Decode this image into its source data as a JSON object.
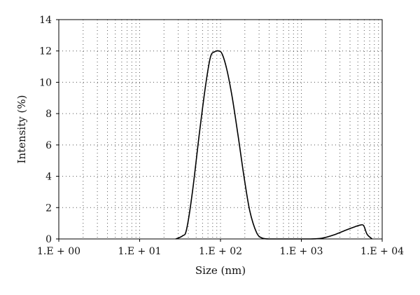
{
  "chart_data": {
    "type": "line",
    "xlabel": "Size (nm)",
    "ylabel": "Intensity (%)",
    "x_scale": "log",
    "xlim": [
      1,
      10000
    ],
    "ylim": [
      0,
      14
    ],
    "x_ticks": [
      {
        "value": 1,
        "label": "1.E + 00"
      },
      {
        "value": 10,
        "label": "1.E + 01"
      },
      {
        "value": 100,
        "label": "1.E + 02"
      },
      {
        "value": 1000,
        "label": "1.E + 03"
      },
      {
        "value": 10000,
        "label": "1.E + 04"
      }
    ],
    "y_ticks": [
      {
        "value": 0,
        "label": "0"
      },
      {
        "value": 2,
        "label": "2"
      },
      {
        "value": 4,
        "label": "4"
      },
      {
        "value": 6,
        "label": "6"
      },
      {
        "value": 8,
        "label": "8"
      },
      {
        "value": 10,
        "label": "10"
      },
      {
        "value": 12,
        "label": "12"
      },
      {
        "value": 14,
        "label": "14"
      }
    ],
    "grid": true,
    "legend": "none",
    "series": [
      {
        "x": [
          28,
          34,
          38,
          45,
          55,
          65,
          75,
          85,
          95,
          105,
          120,
          140,
          165,
          195,
          230,
          280,
          330,
          400,
          600,
          900,
          1300,
          1800,
          2500,
          3500,
          4600,
          5300,
          5900,
          6500,
          7500
        ],
        "y": [
          0,
          0.2,
          0.6,
          3.0,
          6.8,
          9.7,
          11.6,
          11.95,
          12.0,
          11.8,
          10.8,
          9.0,
          6.6,
          4.0,
          1.8,
          0.4,
          0.05,
          0,
          0,
          0,
          0,
          0.05,
          0.25,
          0.55,
          0.78,
          0.88,
          0.85,
          0.3,
          0
        ]
      }
    ]
  }
}
